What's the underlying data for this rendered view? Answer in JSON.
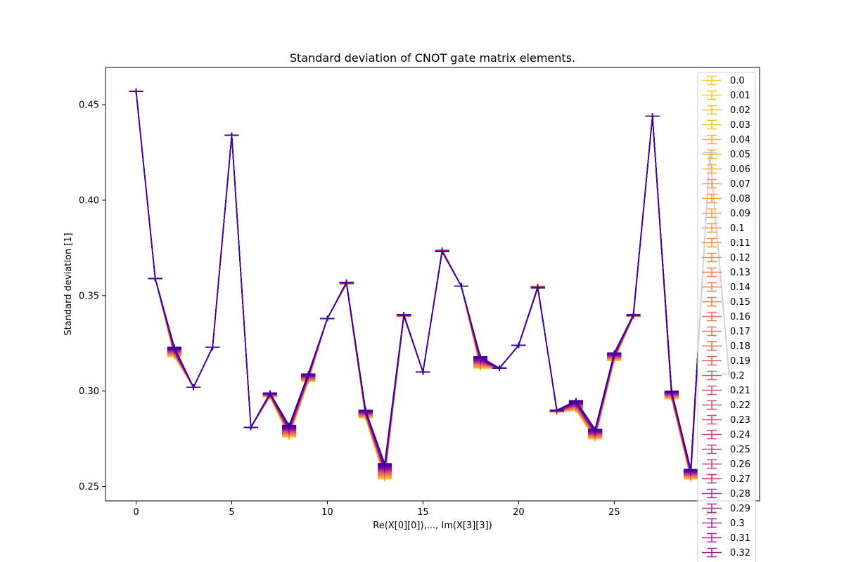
{
  "chart_data": {
    "type": "line",
    "title": "Standard deviation of CNOT gate matrix elements.",
    "xlabel": "Re(X[0][0]),..., Im(X[3][3])",
    "ylabel": "Standard deviation [1]",
    "xlim": [
      -1.6,
      32.6
    ],
    "ylim": [
      0.2425,
      0.4695
    ],
    "xticks": [
      0,
      5,
      10,
      15,
      20,
      25,
      30
    ],
    "yticks": [
      0.25,
      0.3,
      0.35,
      0.4,
      0.45
    ],
    "ytick_labels": [
      "0.25",
      "0.30",
      "0.35",
      "0.40",
      "0.45"
    ],
    "grid": false,
    "legend_position": "right (overflowing bottom)",
    "colormap": "plasma",
    "x": [
      0,
      1,
      2,
      3,
      4,
      5,
      6,
      7,
      8,
      9,
      10,
      11,
      12,
      13,
      14,
      15,
      16,
      17,
      18,
      19,
      20,
      21,
      22,
      23,
      24,
      25,
      26,
      27,
      28,
      29,
      30,
      31
    ],
    "series_start": [
      0.457,
      0.359,
      0.318,
      0.302,
      0.323,
      0.434,
      0.281,
      0.297,
      0.276,
      0.305,
      0.338,
      0.356,
      0.286,
      0.254,
      0.339,
      0.31,
      0.374,
      0.355,
      0.312,
      0.312,
      0.324,
      0.355,
      0.289,
      0.29,
      0.275,
      0.316,
      0.339,
      0.444,
      0.296,
      0.254,
      0.425,
      0.309
    ],
    "series_end": [
      0.457,
      0.359,
      0.323,
      0.302,
      0.323,
      0.434,
      0.281,
      0.299,
      0.282,
      0.309,
      0.338,
      0.357,
      0.29,
      0.262,
      0.34,
      0.31,
      0.373,
      0.355,
      0.318,
      0.312,
      0.324,
      0.354,
      0.29,
      0.295,
      0.28,
      0.32,
      0.34,
      0.444,
      0.3,
      0.259,
      0.425,
      0.309
    ],
    "legend_entries": [
      "0.0",
      "0.01",
      "0.02",
      "0.03",
      "0.04",
      "0.05",
      "0.06",
      "0.07",
      "0.08",
      "0.09",
      "0.1",
      "0.11",
      "0.12",
      "0.13",
      "0.14",
      "0.15",
      "0.16",
      "0.17",
      "0.18",
      "0.19",
      "0.2",
      "0.21",
      "0.22",
      "0.23",
      "0.24",
      "0.25",
      "0.26",
      "0.27",
      "0.28",
      "0.29",
      "0.3",
      "0.31",
      "0.32"
    ],
    "series_count": 50,
    "colors": {
      "start": "#fcce25",
      "mid": "#cc4778",
      "end": "#3a049a"
    }
  }
}
